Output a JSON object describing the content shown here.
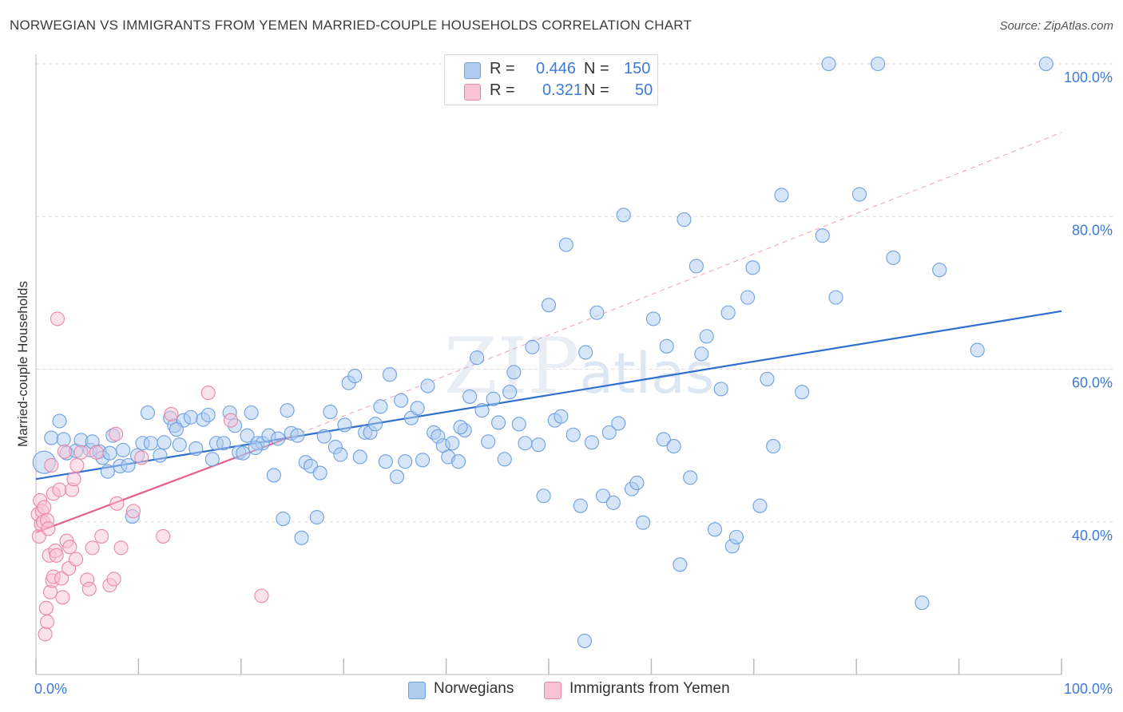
{
  "title": "NORWEGIAN VS IMMIGRANTS FROM YEMEN MARRIED-COUPLE HOUSEHOLDS CORRELATION CHART",
  "source": "Source: ZipAtlas.com",
  "watermark": "ZIPatlas",
  "legend": {
    "rows": [
      {
        "r_label": "R =",
        "r_value": "0.446",
        "n_label": "N =",
        "n_value": "150"
      },
      {
        "r_label": "R =",
        "r_value": "0.321",
        "n_label": "N =",
        "n_value": "50"
      }
    ]
  },
  "colors": {
    "blue_fill": "#aecbf0",
    "blue_stroke": "#6fa0e0",
    "blue_line": "#2f6fce",
    "pink_fill": "#f7c3d5",
    "pink_stroke": "#e987a8",
    "pink_line": "#e0608a",
    "axis_text": "#3d7bd8"
  },
  "chart_data": {
    "type": "scatter",
    "ylabel": "Married-couple Households",
    "xlim": [
      0,
      100
    ],
    "ylim": [
      20,
      100
    ],
    "x_tick_labels": [
      "0.0%",
      "100.0%"
    ],
    "y_tick_labels": [
      "40.0%",
      "60.0%",
      "80.0%",
      "100.0%"
    ],
    "y_ticks": [
      40,
      60,
      80,
      100
    ],
    "grid": "horizontal dashed",
    "series": [
      {
        "name": "Norwegians",
        "r": 0.446,
        "n": 150,
        "trend": {
          "x": [
            0,
            100
          ],
          "y": [
            45.6,
            67.6
          ]
        },
        "points": [
          [
            0.8,
            47.8
          ],
          [
            1.5,
            51
          ],
          [
            2.3,
            53.2
          ],
          [
            2.7,
            50.8
          ],
          [
            3,
            49
          ],
          [
            3.9,
            49.3
          ],
          [
            4.4,
            50.7
          ],
          [
            5.3,
            49.4
          ],
          [
            5.5,
            50.5
          ],
          [
            6.2,
            49.2
          ],
          [
            6.5,
            48.4
          ],
          [
            7,
            46.6
          ],
          [
            7.5,
            51.3
          ],
          [
            8.2,
            47.3
          ],
          [
            8.5,
            49.4
          ],
          [
            9,
            47.4
          ],
          [
            9.4,
            40.7
          ],
          [
            9.9,
            48.7
          ],
          [
            10.4,
            50.3
          ],
          [
            10.9,
            54.3
          ],
          [
            11.2,
            50.3
          ],
          [
            12.1,
            48.7
          ],
          [
            12.5,
            50.4
          ],
          [
            13.1,
            53.6
          ],
          [
            13.5,
            52.6
          ],
          [
            14,
            50.1
          ],
          [
            14.4,
            53.3
          ],
          [
            15.1,
            53.7
          ],
          [
            15.6,
            49.6
          ],
          [
            16.3,
            53.4
          ],
          [
            16.8,
            54
          ],
          [
            17.2,
            48.2
          ],
          [
            17.6,
            50.3
          ],
          [
            18.3,
            50.3
          ],
          [
            18.9,
            54.3
          ],
          [
            19.4,
            52.6
          ],
          [
            19.8,
            49.1
          ],
          [
            20.2,
            49
          ],
          [
            20.6,
            51.3
          ],
          [
            21,
            54.3
          ],
          [
            21.6,
            50.3
          ],
          [
            22.1,
            50.3
          ],
          [
            22.7,
            51.3
          ],
          [
            23.2,
            46.1
          ],
          [
            23.6,
            50.9
          ],
          [
            24.1,
            40.4
          ],
          [
            24.5,
            54.6
          ],
          [
            24.9,
            51.6
          ],
          [
            25.5,
            51.3
          ],
          [
            25.9,
            37.9
          ],
          [
            26.3,
            47.8
          ],
          [
            26.8,
            47.3
          ],
          [
            27.4,
            40.6
          ],
          [
            27.7,
            46.4
          ],
          [
            28.1,
            51.2
          ],
          [
            28.7,
            54.4
          ],
          [
            29.2,
            49.8
          ],
          [
            29.7,
            48.8
          ],
          [
            30.1,
            52.7
          ],
          [
            30.5,
            58.2
          ],
          [
            31.1,
            59.1
          ],
          [
            31.6,
            48.5
          ],
          [
            32.1,
            51.7
          ],
          [
            32.6,
            51.7
          ],
          [
            33.1,
            52.8
          ],
          [
            33.6,
            55.1
          ],
          [
            34.1,
            47.9
          ],
          [
            34.5,
            59.3
          ],
          [
            35.2,
            45.9
          ],
          [
            35.6,
            55.9
          ],
          [
            36,
            47.9
          ],
          [
            36.6,
            53.6
          ],
          [
            37.2,
            54.9
          ],
          [
            37.7,
            48.1
          ],
          [
            38.2,
            57.8
          ],
          [
            38.8,
            51.7
          ],
          [
            39.2,
            51.2
          ],
          [
            39.7,
            50
          ],
          [
            40.2,
            48.5
          ],
          [
            40.6,
            50.3
          ],
          [
            41.2,
            47.9
          ],
          [
            41.8,
            52
          ],
          [
            42.3,
            56.4
          ],
          [
            43,
            61.5
          ],
          [
            43.5,
            54.6
          ],
          [
            44.1,
            50.5
          ],
          [
            44.6,
            56.1
          ],
          [
            45.1,
            53
          ],
          [
            45.7,
            48.2
          ],
          [
            46.2,
            57
          ],
          [
            46.6,
            59.6
          ],
          [
            47.1,
            52.8
          ],
          [
            47.7,
            50.3
          ],
          [
            48.4,
            62.9
          ],
          [
            49,
            50.1
          ],
          [
            49.5,
            43.4
          ],
          [
            50,
            68.4
          ],
          [
            50.6,
            53.3
          ],
          [
            51.2,
            53.8
          ],
          [
            51.7,
            76.3
          ],
          [
            52.4,
            51.4
          ],
          [
            53.1,
            42.1
          ],
          [
            53.6,
            62.2
          ],
          [
            54.2,
            50.4
          ],
          [
            54.7,
            67.4
          ],
          [
            55.3,
            43.4
          ],
          [
            55.9,
            51.7
          ],
          [
            56.3,
            42.5
          ],
          [
            56.8,
            52.9
          ],
          [
            57.3,
            80.2
          ],
          [
            58.1,
            44.3
          ],
          [
            58.6,
            45.1
          ],
          [
            59.2,
            39.9
          ],
          [
            60.2,
            66.6
          ],
          [
            61.2,
            50.8
          ],
          [
            61.5,
            63
          ],
          [
            62.2,
            49.9
          ],
          [
            62.8,
            34.4
          ],
          [
            63.2,
            79.6
          ],
          [
            63.8,
            45.8
          ],
          [
            64.4,
            73.5
          ],
          [
            64.9,
            62
          ],
          [
            65.4,
            64.3
          ],
          [
            66.2,
            39
          ],
          [
            66.8,
            57.4
          ],
          [
            67.5,
            67.4
          ],
          [
            67.9,
            36.8
          ],
          [
            68.3,
            38
          ],
          [
            69.4,
            69.4
          ],
          [
            69.9,
            73.3
          ],
          [
            70.6,
            42.1
          ],
          [
            71.3,
            58.7
          ],
          [
            71.9,
            49.9
          ],
          [
            72.7,
            82.8
          ],
          [
            74.7,
            57
          ],
          [
            76.7,
            77.5
          ],
          [
            77.3,
            100
          ],
          [
            78,
            69.4
          ],
          [
            80.3,
            82.9
          ],
          [
            82.1,
            100
          ],
          [
            83.6,
            74.6
          ],
          [
            86.4,
            29.4
          ],
          [
            88.1,
            73
          ],
          [
            91.8,
            62.5
          ],
          [
            98.5,
            100
          ],
          [
            53.5,
            24.4
          ],
          [
            41.4,
            52.4
          ],
          [
            21.4,
            49.7
          ],
          [
            13.7,
            52.1
          ],
          [
            7.2,
            49
          ]
        ]
      },
      {
        "name": "Immigrants from Yemen",
        "r": 0.321,
        "n": 50,
        "trend": {
          "x": [
            0,
            25
          ],
          "y": [
            38.6,
            51.2
          ]
        },
        "dashed_extension": {
          "x": [
            25,
            100
          ],
          "y": [
            51.2,
            91
          ]
        },
        "points": [
          [
            0.2,
            41
          ],
          [
            0.3,
            38.1
          ],
          [
            0.4,
            42.8
          ],
          [
            0.5,
            39.7
          ],
          [
            0.6,
            41.4
          ],
          [
            0.7,
            40
          ],
          [
            0.8,
            41.9
          ],
          [
            0.9,
            25.3
          ],
          [
            1,
            28.7
          ],
          [
            1.1,
            26.9
          ],
          [
            1.1,
            40.2
          ],
          [
            1.2,
            39.1
          ],
          [
            1.3,
            35.6
          ],
          [
            1.4,
            30.8
          ],
          [
            1.5,
            47.4
          ],
          [
            1.6,
            32.3
          ],
          [
            1.7,
            32.8
          ],
          [
            1.7,
            43.7
          ],
          [
            1.9,
            36.2
          ],
          [
            2,
            35.6
          ],
          [
            2.1,
            66.6
          ],
          [
            2.3,
            44.2
          ],
          [
            2.5,
            32.6
          ],
          [
            2.6,
            30.1
          ],
          [
            2.8,
            49.2
          ],
          [
            3,
            37.5
          ],
          [
            3.2,
            33.9
          ],
          [
            3.3,
            36.7
          ],
          [
            3.5,
            44.2
          ],
          [
            3.7,
            45.6
          ],
          [
            3.9,
            35.1
          ],
          [
            4,
            47.4
          ],
          [
            4.4,
            49.1
          ],
          [
            5,
            32.4
          ],
          [
            5.2,
            31.2
          ],
          [
            5.5,
            36.6
          ],
          [
            5.9,
            49.1
          ],
          [
            6.4,
            38.1
          ],
          [
            7.2,
            31.7
          ],
          [
            7.6,
            32.5
          ],
          [
            7.8,
            51.5
          ],
          [
            7.9,
            42.4
          ],
          [
            8.3,
            36.6
          ],
          [
            9.5,
            41.4
          ],
          [
            10.3,
            48.4
          ],
          [
            12.4,
            38.1
          ],
          [
            13.2,
            54.1
          ],
          [
            16.8,
            56.9
          ],
          [
            19,
            53.3
          ],
          [
            22,
            30.3
          ]
        ]
      }
    ]
  },
  "bottom_legend": [
    {
      "label": "Norwegians"
    },
    {
      "label": "Immigrants from Yemen"
    }
  ]
}
